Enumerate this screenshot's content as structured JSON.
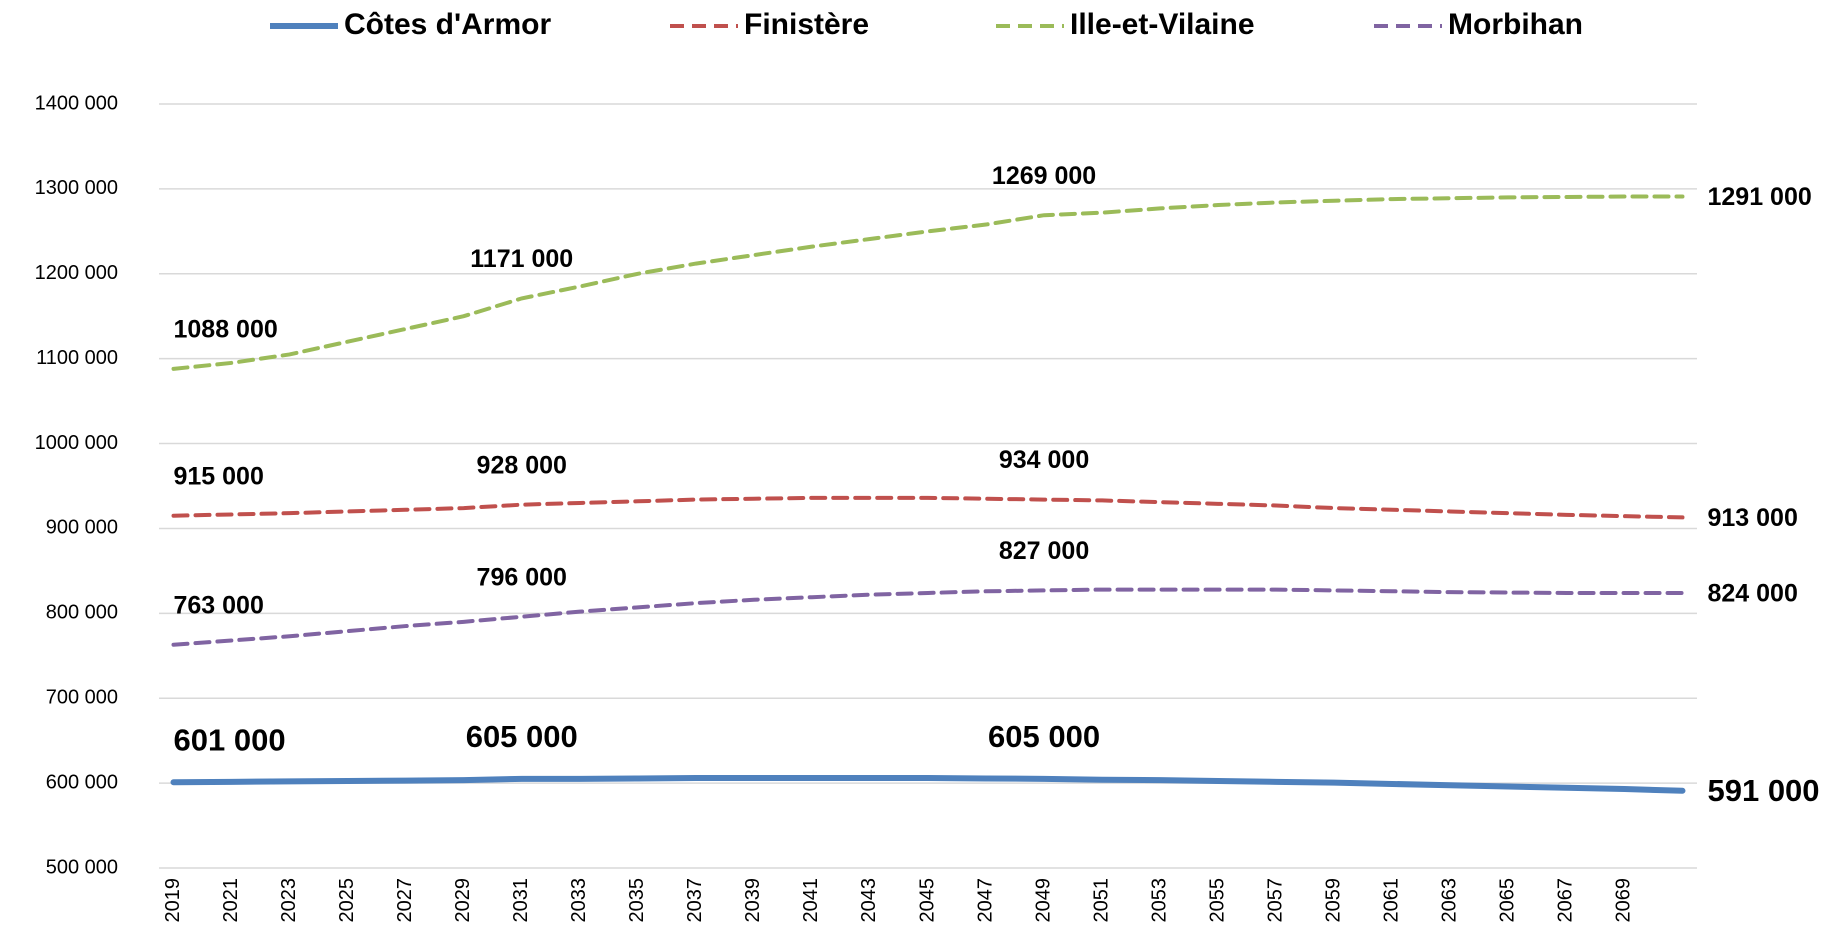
{
  "chart_data": {
    "type": "line",
    "x": [
      2019,
      2021,
      2023,
      2025,
      2027,
      2029,
      2031,
      2033,
      2035,
      2037,
      2039,
      2041,
      2043,
      2045,
      2047,
      2049,
      2051,
      2053,
      2055,
      2057,
      2059,
      2061,
      2063,
      2065,
      2067,
      2069,
      2071
    ],
    "xlim": [
      2018.5,
      2071.5
    ],
    "xticks": [
      2019,
      2021,
      2023,
      2025,
      2027,
      2029,
      2031,
      2033,
      2035,
      2037,
      2039,
      2041,
      2043,
      2045,
      2047,
      2049,
      2051,
      2053,
      2055,
      2057,
      2059,
      2061,
      2063,
      2065,
      2067,
      2069
    ],
    "ylim": [
      500000,
      1400000
    ],
    "yticks": [
      {
        "value": 500000,
        "label": "500 000"
      },
      {
        "value": 600000,
        "label": "600 000"
      },
      {
        "value": 700000,
        "label": "700 000"
      },
      {
        "value": 800000,
        "label": "800 000"
      },
      {
        "value": 900000,
        "label": "900 000"
      },
      {
        "value": 1000000,
        "label": "1000 000"
      },
      {
        "value": 1100000,
        "label": "1100 000"
      },
      {
        "value": 1200000,
        "label": "1200 000"
      },
      {
        "value": 1300000,
        "label": "1300 000"
      },
      {
        "value": 1400000,
        "label": "1400 000"
      }
    ],
    "grid": true,
    "legend": "top",
    "series": [
      {
        "name": "Côtes d'Armor",
        "color": "#4f81bd",
        "dashed": false,
        "values": [
          601000,
          601500,
          602000,
          602500,
          603000,
          603500,
          605000,
          605000,
          605500,
          606000,
          606000,
          606000,
          606000,
          606000,
          605500,
          605000,
          604000,
          603500,
          602500,
          601500,
          600500,
          599000,
          597500,
          596000,
          594500,
          593000,
          591000
        ],
        "value_labels": [
          "601 000",
          null,
          null,
          null,
          null,
          null,
          "605 000",
          null,
          null,
          null,
          null,
          null,
          null,
          null,
          null,
          "605 000",
          null,
          null,
          null,
          null,
          null,
          null,
          null,
          null,
          null,
          null,
          "591 000"
        ]
      },
      {
        "name": "Finistère",
        "color": "#c0504d",
        "dashed": true,
        "values": [
          915000,
          916500,
          918000,
          920000,
          922000,
          924000,
          928000,
          930000,
          932000,
          934000,
          935000,
          936000,
          936000,
          936000,
          935000,
          934000,
          933000,
          931000,
          929000,
          927000,
          924000,
          922000,
          920000,
          918000,
          916000,
          914500,
          913000
        ],
        "value_labels": [
          "915 000",
          null,
          null,
          null,
          null,
          null,
          "928 000",
          null,
          null,
          null,
          null,
          null,
          null,
          null,
          null,
          "934 000",
          null,
          null,
          null,
          null,
          null,
          null,
          null,
          null,
          null,
          null,
          "913 000"
        ]
      },
      {
        "name": "Ille-et-Vilaine",
        "color": "#9bbb59",
        "dashed": true,
        "values": [
          1088000,
          1095000,
          1105000,
          1120000,
          1135000,
          1150000,
          1171000,
          1185000,
          1200000,
          1212000,
          1222000,
          1232000,
          1241000,
          1250000,
          1258000,
          1269000,
          1272000,
          1277000,
          1281000,
          1284000,
          1286000,
          1288000,
          1289000,
          1290000,
          1290500,
          1291000,
          1291000
        ],
        "value_labels": [
          "1088 000",
          null,
          null,
          null,
          null,
          null,
          "1171 000",
          null,
          null,
          null,
          null,
          null,
          null,
          null,
          null,
          "1269 000",
          null,
          null,
          null,
          null,
          null,
          null,
          null,
          null,
          null,
          null,
          "1291 000"
        ]
      },
      {
        "name": "Morbihan",
        "color": "#8064a2",
        "dashed": true,
        "values": [
          763000,
          768000,
          773000,
          779000,
          785000,
          790000,
          796000,
          802000,
          807000,
          812000,
          816000,
          819000,
          822000,
          824000,
          826000,
          827000,
          828000,
          828000,
          828000,
          828000,
          827000,
          826000,
          825000,
          824500,
          824000,
          824000,
          824000
        ],
        "value_labels": [
          "763 000",
          null,
          null,
          null,
          null,
          null,
          "796 000",
          null,
          null,
          null,
          null,
          null,
          null,
          null,
          null,
          "827 000",
          null,
          null,
          null,
          null,
          null,
          null,
          null,
          null,
          null,
          null,
          "824 000"
        ]
      }
    ]
  }
}
